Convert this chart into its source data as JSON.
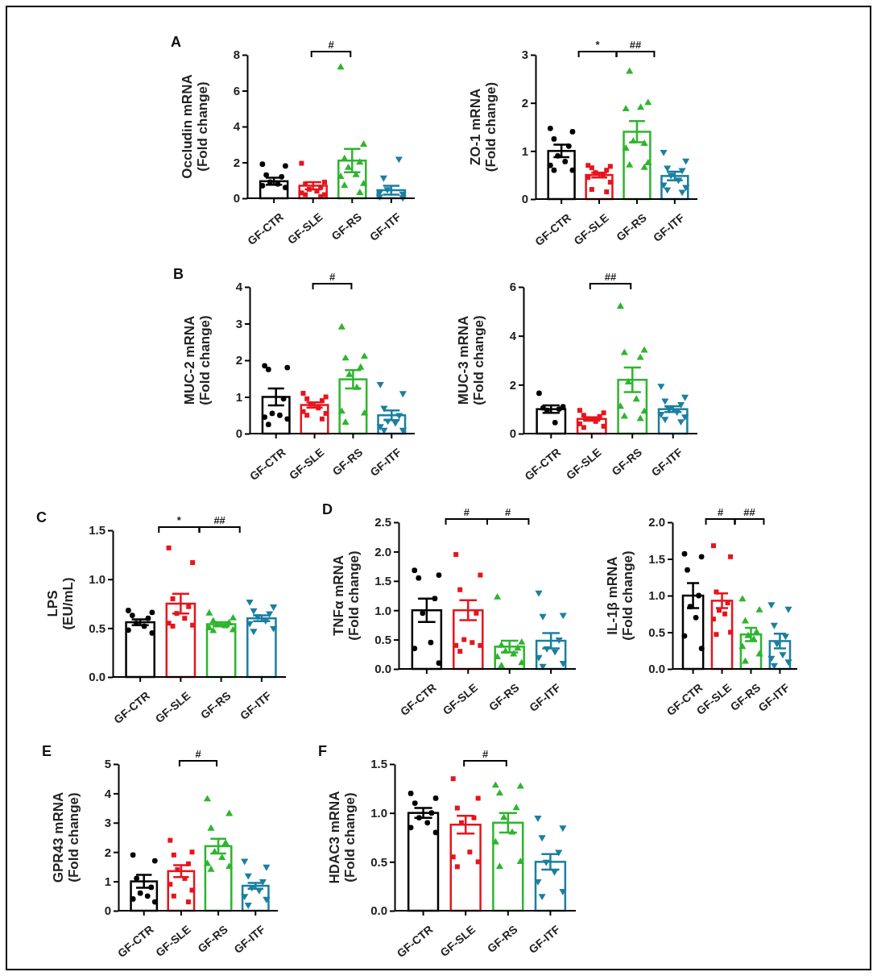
{
  "chart_data": [
    {
      "type": "bar",
      "title": "A",
      "ylabel": "Occludin mRNA\n(Fold change)",
      "categories": [
        "GF-CTR",
        "GF-SLE",
        "GF-RS",
        "GF-ITF"
      ],
      "values": [
        0.95,
        0.7,
        2.1,
        0.45
      ],
      "colors": [
        "#000000",
        "#e8141c",
        "#2db52d",
        "#1a7fa0"
      ],
      "errors": [
        0.2,
        0.2,
        0.65,
        0.25
      ],
      "ylim": [
        0,
        8
      ],
      "yticks": [
        0,
        2,
        4,
        6,
        8
      ],
      "annotations": [
        "#"
      ],
      "series": [
        {
          "type": "scatter",
          "x": [
            "GF-CTR",
            "GF-CTR",
            "GF-CTR",
            "GF-CTR",
            "GF-CTR",
            "GF-CTR",
            "GF-CTR",
            "GF-CTR"
          ],
          "values": [
            1.9,
            1.8,
            1.3,
            1.2,
            0.9,
            0.8,
            0.7,
            0.6
          ],
          "color": "#000000",
          "marker": "circle"
        },
        {
          "type": "scatter",
          "x": [
            "GF-SLE",
            "GF-SLE",
            "GF-SLE",
            "GF-SLE",
            "GF-SLE",
            "GF-SLE",
            "GF-SLE",
            "GF-SLE",
            "GF-SLE",
            "GF-SLE"
          ],
          "values": [
            1.95,
            0.9,
            0.8,
            0.6,
            0.5,
            0.4,
            0.3,
            0.2,
            0.2,
            0.1
          ],
          "color": "#e8141c",
          "marker": "square"
        },
        {
          "type": "scatter",
          "x": [
            "GF-RS",
            "GF-RS",
            "GF-RS",
            "GF-RS",
            "GF-RS",
            "GF-RS",
            "GF-RS",
            "GF-RS",
            "GF-RS",
            "GF-RS"
          ],
          "values": [
            7.3,
            3.0,
            2.2,
            2.0,
            1.7,
            1.3,
            1.2,
            0.8,
            0.7,
            0.3
          ],
          "color": "#2db52d",
          "marker": "triangle"
        },
        {
          "type": "scatter",
          "x": [
            "GF-ITF",
            "GF-ITF",
            "GF-ITF",
            "GF-ITF",
            "GF-ITF",
            "GF-ITF",
            "GF-ITF",
            "GF-ITF",
            "GF-ITF",
            "GF-ITF"
          ],
          "values": [
            0.35,
            0.05,
            1.15,
            2.2,
            0.5,
            null,
            0.1,
            0.25,
            null,
            null
          ],
          "color": "#1a7fa0",
          "marker": "triangle-down"
        }
      ]
    },
    {
      "type": "bar",
      "ylabel": "ZO-1 mRNA\n(Fold change)",
      "categories": [
        "GF-CTR",
        "GF-SLE",
        "GF-RS",
        "GF-ITF"
      ],
      "values": [
        1.0,
        0.5,
        1.4,
        0.48
      ],
      "colors": [
        "#000000",
        "#e8141c",
        "#2db52d",
        "#1a7fa0"
      ],
      "errors": [
        0.13,
        0.05,
        0.22,
        0.09
      ],
      "ylim": [
        0,
        3
      ],
      "yticks": [
        0,
        1,
        2,
        3
      ],
      "annotations": [
        "*",
        "##"
      ],
      "series": [
        {
          "type": "scatter",
          "x": [
            "GF-CTR",
            "GF-CTR",
            "GF-CTR",
            "GF-CTR",
            "GF-CTR",
            "GF-CTR",
            "GF-CTR",
            "GF-CTR",
            "GF-CTR"
          ],
          "values": [
            1.47,
            1.4,
            1.25,
            1.1,
            0.9,
            0.78,
            0.7,
            0.6,
            0.6
          ],
          "color": "#000000",
          "marker": "circle"
        },
        {
          "type": "scatter",
          "x": [
            "GF-SLE",
            "GF-SLE",
            "GF-SLE",
            "GF-SLE",
            "GF-SLE",
            "GF-SLE",
            "GF-SLE",
            "GF-SLE",
            "GF-SLE",
            "GF-SLE"
          ],
          "values": [
            0.7,
            0.68,
            0.65,
            0.6,
            0.55,
            0.5,
            0.45,
            0.35,
            0.2,
            0.15
          ],
          "color": "#e8141c",
          "marker": "square"
        },
        {
          "type": "scatter",
          "x": [
            "GF-RS",
            "GF-RS",
            "GF-RS",
            "GF-RS",
            "GF-RS",
            "GF-RS",
            "GF-RS",
            "GF-RS",
            "GF-RS",
            "GF-RS"
          ],
          "values": [
            1.87,
            2.0,
            2.65,
            1.15,
            1.2,
            1.9,
            1.05,
            0.75,
            0.7,
            0.65
          ],
          "color": "#2db52d",
          "marker": "triangle"
        },
        {
          "type": "scatter",
          "x": [
            "GF-ITF",
            "GF-ITF",
            "GF-ITF",
            "GF-ITF",
            "GF-ITF",
            "GF-ITF",
            "GF-ITF",
            "GF-ITF",
            "GF-ITF",
            "GF-ITF"
          ],
          "values": [
            0.98,
            0.8,
            0.65,
            0.6,
            0.5,
            0.4,
            0.3,
            0.25,
            0.2,
            0.15
          ],
          "color": "#1a7fa0",
          "marker": "triangle-down"
        }
      ]
    },
    {
      "type": "bar",
      "title": "B",
      "ylabel": "MUC-2 mRNA\n(Fold change)",
      "categories": [
        "GF-CTR",
        "GF-SLE",
        "GF-RS",
        "GF-ITF"
      ],
      "values": [
        1.0,
        0.78,
        1.48,
        0.5
      ],
      "colors": [
        "#000000",
        "#e8141c",
        "#2db52d",
        "#1a7fa0"
      ],
      "errors": [
        0.23,
        0.07,
        0.25,
        0.13
      ],
      "ylim": [
        0,
        4
      ],
      "yticks": [
        0,
        1,
        2,
        3,
        4
      ],
      "annotations": [
        "#"
      ],
      "series": [
        {
          "type": "scatter",
          "x": [
            "GF-CTR",
            "GF-CTR",
            "GF-CTR",
            "GF-CTR",
            "GF-CTR",
            "GF-CTR",
            "GF-CTR",
            "GF-CTR",
            "GF-CTR"
          ],
          "values": [
            1.85,
            1.8,
            1.75,
            0.95,
            0.55,
            0.5,
            0.45,
            0.4,
            0.25
          ],
          "color": "#000000",
          "marker": "circle"
        },
        {
          "type": "scatter",
          "x": [
            "GF-SLE",
            "GF-SLE",
            "GF-SLE",
            "GF-SLE",
            "GF-SLE",
            "GF-SLE",
            "GF-SLE",
            "GF-SLE",
            "GF-SLE",
            "GF-SLE"
          ],
          "values": [
            1.1,
            1.0,
            0.95,
            0.9,
            0.8,
            0.7,
            0.6,
            0.55,
            0.5,
            0.4
          ],
          "color": "#e8141c",
          "marker": "square"
        },
        {
          "type": "scatter",
          "x": [
            "GF-RS",
            "GF-RS",
            "GF-RS",
            "GF-RS",
            "GF-RS",
            "GF-RS",
            "GF-RS",
            "GF-RS",
            "GF-RS"
          ],
          "values": [
            2.9,
            2.1,
            2.05,
            1.8,
            1.6,
            1.25,
            0.6,
            0.55,
            0.3
          ],
          "color": "#2db52d",
          "marker": "triangle"
        },
        {
          "type": "scatter",
          "x": [
            "GF-ITF",
            "GF-ITF",
            "GF-ITF",
            "GF-ITF",
            "GF-ITF",
            "GF-ITF",
            "GF-ITF",
            "GF-ITF",
            "GF-ITF"
          ],
          "values": [
            1.35,
            1.1,
            0.7,
            0.5,
            0.35,
            0.3,
            0.2,
            0.1,
            0.1
          ],
          "color": "#1a7fa0",
          "marker": "triangle-down"
        }
      ]
    },
    {
      "type": "bar",
      "ylabel": "MUC-3 mRNA\n(Fold change)",
      "categories": [
        "GF-CTR",
        "GF-SLE",
        "GF-RS",
        "GF-ITF"
      ],
      "values": [
        1.0,
        0.6,
        2.2,
        1.0
      ],
      "colors": [
        "#000000",
        "#e8141c",
        "#2db52d",
        "#1a7fa0"
      ],
      "errors": [
        0.15,
        0.07,
        0.5,
        0.12
      ],
      "ylim": [
        0,
        6
      ],
      "yticks": [
        0,
        2,
        4,
        6
      ],
      "annotations": [
        "##"
      ],
      "series": [
        {
          "type": "scatter",
          "x": [
            "GF-CTR",
            "GF-CTR",
            "GF-CTR",
            "GF-CTR",
            "GF-CTR",
            "GF-CTR"
          ],
          "values": [
            1.65,
            1.1,
            1.05,
            1.0,
            0.95,
            0.45
          ],
          "color": "#000000",
          "marker": "circle"
        },
        {
          "type": "scatter",
          "x": [
            "GF-SLE",
            "GF-SLE",
            "GF-SLE",
            "GF-SLE",
            "GF-SLE",
            "GF-SLE",
            "GF-SLE",
            "GF-SLE",
            "GF-SLE"
          ],
          "values": [
            0.95,
            0.85,
            0.75,
            0.7,
            0.6,
            0.5,
            0.4,
            0.3,
            0.25
          ],
          "color": "#e8141c",
          "marker": "square"
        },
        {
          "type": "scatter",
          "x": [
            "GF-RS",
            "GF-RS",
            "GF-RS",
            "GF-RS",
            "GF-RS",
            "GF-RS",
            "GF-RS",
            "GF-RS",
            "GF-RS",
            "GF-RS"
          ],
          "values": [
            5.2,
            3.4,
            3.3,
            3.1,
            2.1,
            1.4,
            1.1,
            0.9,
            0.7,
            0.6
          ],
          "color": "#2db52d",
          "marker": "triangle"
        },
        {
          "type": "scatter",
          "x": [
            "GF-ITF",
            "GF-ITF",
            "GF-ITF",
            "GF-ITF",
            "GF-ITF",
            "GF-ITF",
            "GF-ITF",
            "GF-ITF",
            "GF-ITF",
            "GF-ITF"
          ],
          "values": [
            1.95,
            1.5,
            1.35,
            1.2,
            1.0,
            0.9,
            0.8,
            0.7,
            0.6,
            0.5
          ],
          "color": "#1a7fa0",
          "marker": "triangle-down"
        }
      ]
    },
    {
      "type": "bar",
      "title": "C",
      "ylabel": "LPS\n(EU/mL)",
      "categories": [
        "GF-CTR",
        "GF-SLE",
        "GF-RS",
        "GF-ITF"
      ],
      "values": [
        0.56,
        0.75,
        0.54,
        0.6
      ],
      "colors": [
        "#000000",
        "#e8141c",
        "#2db52d",
        "#1a7fa0"
      ],
      "errors": [
        0.03,
        0.1,
        0.02,
        0.03
      ],
      "ylim": [
        0,
        1.5
      ],
      "yticks": [
        {
          "value": 0,
          "label": "0.0"
        },
        {
          "value": 0.5,
          "label": "0.5"
        },
        {
          "value": 1,
          "label": "1.0"
        },
        {
          "value": 1.5,
          "label": "1.5"
        }
      ],
      "annotations": [
        "*",
        "##"
      ],
      "series": [
        {
          "type": "scatter",
          "x": [
            "GF-CTR",
            "GF-CTR",
            "GF-CTR",
            "GF-CTR",
            "GF-CTR",
            "GF-CTR",
            "GF-CTR",
            "GF-CTR"
          ],
          "values": [
            0.68,
            0.66,
            0.63,
            0.6,
            0.55,
            0.52,
            0.48,
            0.45
          ],
          "color": "#000000",
          "marker": "circle"
        },
        {
          "type": "scatter",
          "x": [
            "GF-SLE",
            "GF-SLE",
            "GF-SLE",
            "GF-SLE",
            "GF-SLE",
            "GF-SLE",
            "GF-SLE",
            "GF-SLE",
            "GF-SLE"
          ],
          "values": [
            1.32,
            1.17,
            0.8,
            0.72,
            0.65,
            0.6,
            0.55,
            0.53,
            0.52
          ],
          "color": "#e8141c",
          "marker": "square"
        },
        {
          "type": "scatter",
          "x": [
            "GF-RS",
            "GF-RS",
            "GF-RS",
            "GF-RS",
            "GF-RS",
            "GF-RS",
            "GF-RS",
            "GF-RS",
            "GF-RS"
          ],
          "values": [
            0.65,
            0.6,
            0.57,
            0.55,
            0.53,
            0.52,
            0.5,
            0.48,
            0.47
          ],
          "color": "#2db52d",
          "marker": "triangle"
        },
        {
          "type": "scatter",
          "x": [
            "GF-ITF",
            "GF-ITF",
            "GF-ITF",
            "GF-ITF",
            "GF-ITF",
            "GF-ITF",
            "GF-ITF",
            "GF-ITF",
            "GF-ITF"
          ],
          "values": [
            0.77,
            0.72,
            0.68,
            0.65,
            0.62,
            0.58,
            0.55,
            0.5,
            0.47
          ],
          "color": "#1a7fa0",
          "marker": "triangle-down"
        }
      ]
    },
    {
      "type": "bar",
      "title": "D",
      "ylabel": "TNFα mRNA\n(Fold change)",
      "categories": [
        "GF-CTR",
        "GF-SLE",
        "GF-RS",
        "GF-ITF"
      ],
      "values": [
        1.0,
        1.0,
        0.38,
        0.48
      ],
      "colors": [
        "#000000",
        "#e8141c",
        "#2db52d",
        "#1a7fa0"
      ],
      "errors": [
        0.2,
        0.17,
        0.1,
        0.13
      ],
      "ylim": [
        0,
        2.5
      ],
      "yticks": [
        {
          "value": 0,
          "label": "0.0"
        },
        {
          "value": 0.5,
          "label": "0.5"
        },
        {
          "value": 1,
          "label": "1.0"
        },
        {
          "value": 1.5,
          "label": "1.5"
        },
        {
          "value": 2,
          "label": "2.0"
        },
        {
          "value": 2.5,
          "label": "2.5"
        }
      ],
      "annotations": [
        "#",
        "#"
      ],
      "series": [
        {
          "type": "scatter",
          "x": [
            "GF-CTR",
            "GF-CTR",
            "GF-CTR",
            "GF-CTR",
            "GF-CTR",
            "GF-CTR",
            "GF-CTR",
            "GF-CTR"
          ],
          "values": [
            1.68,
            1.6,
            1.55,
            1.2,
            0.95,
            0.45,
            0.35,
            0.1
          ],
          "color": "#000000",
          "marker": "circle"
        },
        {
          "type": "scatter",
          "x": [
            "GF-SLE",
            "GF-SLE",
            "GF-SLE",
            "GF-SLE",
            "GF-SLE",
            "GF-SLE",
            "GF-SLE",
            "GF-SLE",
            "GF-SLE"
          ],
          "values": [
            1.95,
            1.6,
            1.35,
            0.95,
            0.5,
            0.45,
            0.4,
            0.4,
            0.3
          ],
          "color": "#e8141c",
          "marker": "square"
        },
        {
          "type": "scatter",
          "x": [
            "GF-RS",
            "GF-RS",
            "GF-RS",
            "GF-RS",
            "GF-RS",
            "GF-RS",
            "GF-RS",
            "GF-RS",
            "GF-RS"
          ],
          "values": [
            1.22,
            0.45,
            0.4,
            0.35,
            0.3,
            0.25,
            0.2,
            0.1,
            0.05
          ],
          "color": "#2db52d",
          "marker": "triangle"
        },
        {
          "type": "scatter",
          "x": [
            "GF-ITF",
            "GF-ITF",
            "GF-ITF",
            "GF-ITF",
            "GF-ITF",
            "GF-ITF",
            "GF-ITF",
            "GF-ITF",
            "GF-ITF"
          ],
          "values": [
            1.3,
            0.92,
            0.9,
            0.5,
            0.35,
            0.3,
            0.2,
            0.1,
            0.05
          ],
          "color": "#1a7fa0",
          "marker": "triangle-down"
        }
      ]
    },
    {
      "type": "bar",
      "ylabel": "IL-1β mRNA\n(Fold change)",
      "categories": [
        "GF-CTR",
        "GF-SLE",
        "GF-RS",
        "GF-ITF"
      ],
      "values": [
        1.0,
        0.93,
        0.47,
        0.38
      ],
      "colors": [
        "#000000",
        "#e8141c",
        "#2db52d",
        "#1a7fa0"
      ],
      "errors": [
        0.17,
        0.1,
        0.09,
        0.1
      ],
      "ylim": [
        0,
        2
      ],
      "yticks": [
        {
          "value": 0,
          "label": "0.0"
        },
        {
          "value": 0.5,
          "label": "0.5"
        },
        {
          "value": 1,
          "label": "1.0"
        },
        {
          "value": 1.5,
          "label": "1.5"
        },
        {
          "value": 2,
          "label": "2.0"
        }
      ],
      "annotations": [
        "#",
        "##"
      ],
      "series": [
        {
          "type": "scatter",
          "x": [
            "GF-CTR",
            "GF-CTR",
            "GF-CTR",
            "GF-CTR",
            "GF-CTR",
            "GF-CTR",
            "GF-CTR",
            "GF-CTR"
          ],
          "values": [
            1.57,
            1.53,
            1.35,
            1.0,
            0.85,
            0.7,
            0.45,
            0.28
          ],
          "color": "#000000",
          "marker": "circle"
        },
        {
          "type": "scatter",
          "x": [
            "GF-SLE",
            "GF-SLE",
            "GF-SLE",
            "GF-SLE",
            "GF-SLE",
            "GF-SLE",
            "GF-SLE",
            "GF-SLE",
            "GF-SLE"
          ],
          "values": [
            1.68,
            1.53,
            1.05,
            0.9,
            0.8,
            0.75,
            0.68,
            0.5,
            0.47
          ],
          "color": "#e8141c",
          "marker": "square"
        },
        {
          "type": "scatter",
          "x": [
            "GF-RS",
            "GF-RS",
            "GF-RS",
            "GF-RS",
            "GF-RS",
            "GF-RS",
            "GF-RS",
            "GF-RS",
            "GF-RS"
          ],
          "values": [
            0.95,
            0.8,
            0.65,
            0.5,
            0.45,
            0.4,
            0.3,
            0.2,
            0.1
          ],
          "color": "#2db52d",
          "marker": "triangle"
        },
        {
          "type": "scatter",
          "x": [
            "GF-ITF",
            "GF-ITF",
            "GF-ITF",
            "GF-ITF",
            "GF-ITF",
            "GF-ITF",
            "GF-ITF",
            "GF-ITF",
            "GF-ITF"
          ],
          "values": [
            0.88,
            0.82,
            0.6,
            0.45,
            0.35,
            0.2,
            0.15,
            0.1,
            0.05
          ],
          "color": "#1a7fa0",
          "marker": "triangle-down"
        }
      ]
    },
    {
      "type": "bar",
      "title": "E",
      "ylabel": "GPR43 mRNA\n(Fold change)",
      "categories": [
        "GF-CTR",
        "GF-SLE",
        "GF-RS",
        "GF-ITF"
      ],
      "values": [
        1.0,
        1.35,
        2.2,
        0.85
      ],
      "colors": [
        "#000000",
        "#e8141c",
        "#2db52d",
        "#1a7fa0"
      ],
      "errors": [
        0.22,
        0.2,
        0.25,
        0.1
      ],
      "ylim": [
        0,
        5
      ],
      "yticks": [
        0,
        1,
        2,
        3,
        4,
        5
      ],
      "annotations": [
        "#"
      ],
      "series": [
        {
          "type": "scatter",
          "x": [
            "GF-CTR",
            "GF-CTR",
            "GF-CTR",
            "GF-CTR",
            "GF-CTR",
            "GF-CTR",
            "GF-CTR",
            "GF-CTR"
          ],
          "values": [
            1.9,
            1.7,
            1.1,
            0.8,
            0.6,
            0.5,
            0.4,
            0.3
          ],
          "color": "#000000",
          "marker": "circle"
        },
        {
          "type": "scatter",
          "x": [
            "GF-SLE",
            "GF-SLE",
            "GF-SLE",
            "GF-SLE",
            "GF-SLE",
            "GF-SLE",
            "GF-SLE",
            "GF-SLE",
            "GF-SLE",
            "GF-SLE"
          ],
          "values": [
            2.4,
            2.0,
            1.9,
            1.6,
            1.4,
            1.1,
            0.9,
            0.7,
            0.5,
            0.3
          ],
          "color": "#e8141c",
          "marker": "square"
        },
        {
          "type": "scatter",
          "x": [
            "GF-RS",
            "GF-RS",
            "GF-RS",
            "GF-RS",
            "GF-RS",
            "GF-RS",
            "GF-RS",
            "GF-RS",
            "GF-RS"
          ],
          "values": [
            3.8,
            3.3,
            2.8,
            2.3,
            2.0,
            1.8,
            1.6,
            1.5,
            1.4
          ],
          "color": "#2db52d",
          "marker": "triangle"
        },
        {
          "type": "scatter",
          "x": [
            "GF-ITF",
            "GF-ITF",
            "GF-ITF",
            "GF-ITF",
            "GF-ITF",
            "GF-ITF",
            "GF-ITF",
            "GF-ITF",
            "GF-ITF"
          ],
          "values": [
            1.7,
            1.5,
            1.2,
            1.0,
            0.8,
            0.7,
            0.5,
            0.4,
            0.2
          ],
          "color": "#1a7fa0",
          "marker": "triangle-down"
        }
      ]
    },
    {
      "type": "bar",
      "title": "F",
      "ylabel": "HDAC3 mRNA\n(Fold change)",
      "categories": [
        "GF-CTR",
        "GF-SLE",
        "GF-RS",
        "GF-ITF"
      ],
      "values": [
        1.0,
        0.88,
        0.9,
        0.5
      ],
      "colors": [
        "#000000",
        "#e8141c",
        "#2db52d",
        "#1a7fa0"
      ],
      "errors": [
        0.05,
        0.09,
        0.1,
        0.08
      ],
      "ylim": [
        0,
        1.5
      ],
      "yticks": [
        {
          "value": 0,
          "label": "0.0"
        },
        {
          "value": 0.5,
          "label": "0.5"
        },
        {
          "value": 1,
          "label": "1.0"
        },
        {
          "value": 1.5,
          "label": "1.5"
        }
      ],
      "annotations": [
        "#"
      ],
      "series": [
        {
          "type": "scatter",
          "x": [
            "GF-CTR",
            "GF-CTR",
            "GF-CTR",
            "GF-CTR",
            "GF-CTR",
            "GF-CTR",
            "GF-CTR",
            "GF-CTR"
          ],
          "values": [
            1.2,
            1.15,
            1.1,
            1.0,
            0.95,
            0.9,
            0.85,
            0.8
          ],
          "color": "#000000",
          "marker": "circle"
        },
        {
          "type": "scatter",
          "x": [
            "GF-SLE",
            "GF-SLE",
            "GF-SLE",
            "GF-SLE",
            "GF-SLE",
            "GF-SLE",
            "GF-SLE",
            "GF-SLE",
            "GF-SLE"
          ],
          "values": [
            1.35,
            1.15,
            1.05,
            0.95,
            0.9,
            0.6,
            0.55,
            0.5,
            0.45
          ],
          "color": "#e8141c",
          "marker": "square"
        },
        {
          "type": "scatter",
          "x": [
            "GF-RS",
            "GF-RS",
            "GF-RS",
            "GF-RS",
            "GF-RS",
            "GF-RS",
            "GF-RS",
            "GF-RS",
            "GF-RS"
          ],
          "values": [
            1.28,
            1.27,
            1.2,
            1.05,
            0.95,
            0.8,
            0.7,
            0.5,
            0.45
          ],
          "color": "#2db52d",
          "marker": "triangle"
        },
        {
          "type": "scatter",
          "x": [
            "GF-ITF",
            "GF-ITF",
            "GF-ITF",
            "GF-ITF",
            "GF-ITF",
            "GF-ITF",
            "GF-ITF",
            "GF-ITF",
            "GF-ITF"
          ],
          "values": [
            0.95,
            0.85,
            0.75,
            0.6,
            0.5,
            0.4,
            0.3,
            0.2,
            0.15
          ],
          "color": "#1a7fa0",
          "marker": "triangle-down"
        }
      ]
    }
  ]
}
